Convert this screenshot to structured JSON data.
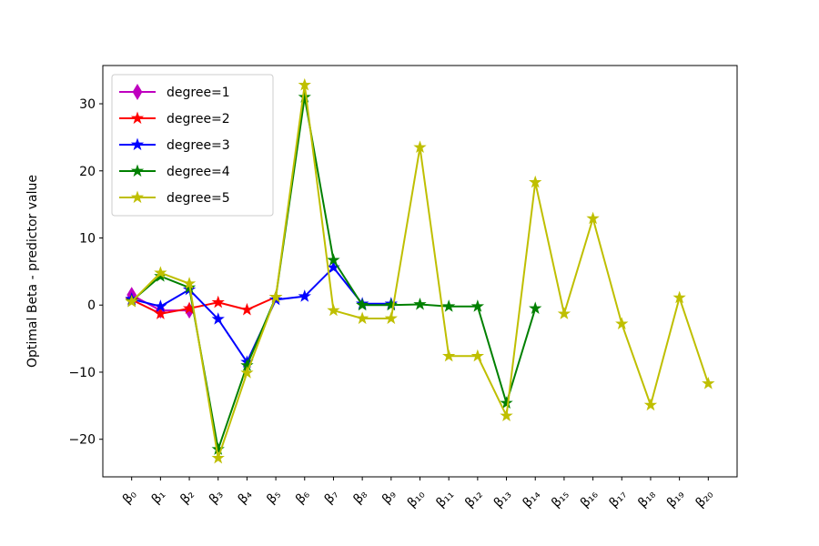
{
  "chart_data": {
    "type": "line",
    "ylabel": "Optimal Beta - predictor value",
    "categories": [
      "β₀",
      "β₁",
      "β₂",
      "β₃",
      "β₄",
      "β₅",
      "β₆",
      "β₇",
      "β₈",
      "β₉",
      "β₁₀",
      "β₁₁",
      "β₁₂",
      "β₁₃",
      "β₁₄",
      "β₁₅",
      "β₁₆",
      "β₁₇",
      "β₁₈",
      "β₁₉",
      "β₂₀"
    ],
    "ylim": [
      -25.6,
      35.7
    ],
    "yticks": [
      {
        "value": -20,
        "label": "−20"
      },
      {
        "value": -10,
        "label": "−10"
      },
      0,
      10,
      20,
      30
    ],
    "legend": "upper left",
    "series": [
      {
        "name": "degree=1",
        "color": "#bf00bf",
        "marker": "diamond",
        "values": [
          1.5,
          -0.8,
          -0.8,
          null,
          null,
          null,
          null,
          null,
          null,
          null,
          null,
          null,
          null,
          null,
          null,
          null,
          null,
          null,
          null,
          null,
          null
        ]
      },
      {
        "name": "degree=2",
        "color": "#ff0000",
        "marker": "star",
        "values": [
          0.8,
          -1.3,
          -0.5,
          0.4,
          -0.7,
          1.2,
          null,
          null,
          null,
          null,
          null,
          null,
          null,
          null,
          null,
          null,
          null,
          null,
          null,
          null,
          null
        ]
      },
      {
        "name": "degree=3",
        "color": "#0000ff",
        "marker": "star",
        "values": [
          0.9,
          -0.2,
          2.3,
          -2.1,
          -8.5,
          0.8,
          1.3,
          5.6,
          0.2,
          0.2,
          null,
          null,
          null,
          null,
          null,
          null,
          null,
          null,
          null,
          null,
          null
        ]
      },
      {
        "name": "degree=4",
        "color": "#008000",
        "marker": "star",
        "values": [
          0.6,
          4.3,
          2.6,
          -21.5,
          -9.0,
          1.2,
          31.0,
          6.7,
          0.0,
          0.0,
          0.1,
          -0.2,
          -0.2,
          -14.6,
          -0.5,
          null,
          null,
          null,
          null,
          null,
          null
        ]
      },
      {
        "name": "degree=5",
        "color": "#bfbf00",
        "marker": "star",
        "values": [
          0.5,
          4.8,
          3.2,
          -22.8,
          -10.1,
          1.2,
          32.8,
          -0.8,
          -2.0,
          -2.0,
          23.5,
          -7.6,
          -7.6,
          -16.5,
          18.3,
          -1.3,
          12.9,
          -2.8,
          -14.9,
          1.1,
          -11.7
        ]
      }
    ]
  }
}
